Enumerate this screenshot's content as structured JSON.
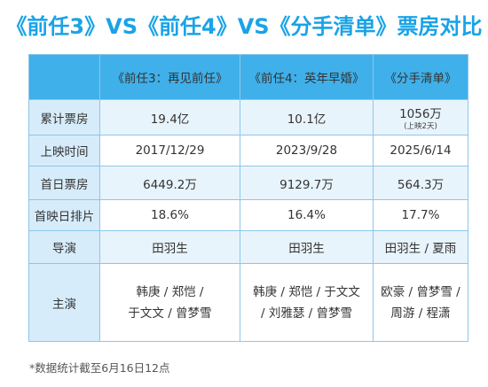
{
  "title": "《前任3》VS《前任4》VS《分手清单》票房对比",
  "columns": [
    "《前任3：再见前任》",
    "《前任4：英年早婚》",
    "《分手清单》"
  ],
  "rows": {
    "box_office": {
      "label": "累计票房",
      "values": [
        "19.4亿",
        "10.1亿",
        "1056万"
      ],
      "note3": "(上映2天)"
    },
    "release": {
      "label": "上映时间",
      "values": [
        "2017/12/29",
        "2023/9/28",
        "2025/6/14"
      ]
    },
    "first_day": {
      "label": "首日票房",
      "values": [
        "6449.2万",
        "9129.7万",
        "564.3万"
      ]
    },
    "schedule": {
      "label": "首映日排片",
      "values": [
        "18.6%",
        "16.4%",
        "17.7%"
      ]
    },
    "director": {
      "label": "导演",
      "values": [
        "田羽生",
        "田羽生",
        "田羽生 / 夏雨"
      ]
    },
    "cast": {
      "label": "主演",
      "values": [
        [
          "韩庚 / 郑恺 /",
          "于文文 / 曾梦雪"
        ],
        [
          "韩庚 / 郑恺 / 于文文",
          "/ 刘雅瑟 / 曾梦雪"
        ],
        [
          "欧豪 / 曾梦雪 /",
          "周游 / 程潇"
        ]
      ]
    }
  },
  "footnote": "*数据统计截至6月16日12点"
}
